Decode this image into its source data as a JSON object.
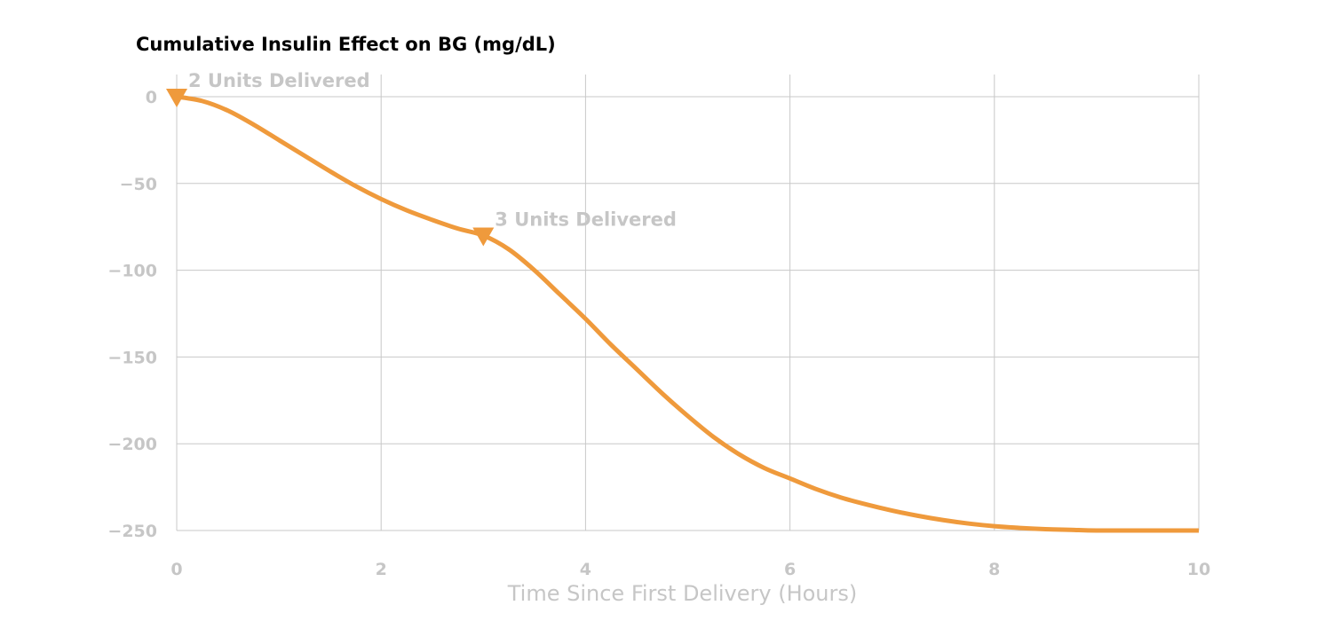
{
  "colors": {
    "line": "#EF9A3C",
    "grid": "#C8C8C8",
    "label": "#C6C6C6",
    "title": "#000000"
  },
  "chart_data": {
    "type": "line",
    "title": "Cumulative Insulin Effect on BG (mg/dL)",
    "xlabel": "Time Since First Delivery (Hours)",
    "ylabel": "",
    "xlim": [
      0,
      10
    ],
    "ylim": [
      -250,
      0
    ],
    "xticks": [
      0,
      2,
      4,
      6,
      8,
      10
    ],
    "yticks": [
      0,
      -50,
      -100,
      -150,
      -200,
      -250
    ],
    "grid": true,
    "series": [
      {
        "x": [
          0,
          0.25,
          0.5,
          0.75,
          1,
          1.25,
          1.5,
          1.75,
          2,
          2.25,
          2.5,
          2.75,
          3,
          3.25,
          3.5,
          3.75,
          4,
          4.25,
          4.5,
          4.75,
          5,
          5.25,
          5.5,
          5.75,
          6,
          6.25,
          6.5,
          6.75,
          7,
          7.25,
          7.5,
          7.75,
          8,
          8.25,
          8.5,
          8.75,
          9,
          9.5,
          10
        ],
        "y": [
          0,
          -2.5,
          -8,
          -16,
          -25,
          -34,
          -43,
          -51.5,
          -59,
          -65.5,
          -71,
          -76,
          -80,
          -88,
          -100,
          -114,
          -128,
          -143,
          -157,
          -171,
          -184,
          -196,
          -206,
          -214,
          -220,
          -226,
          -231,
          -235,
          -238.5,
          -241.5,
          -244,
          -246,
          -247.5,
          -248.5,
          -249.2,
          -249.6,
          -250,
          -250,
          -250
        ]
      }
    ],
    "annotations": [
      {
        "text": "2 Units Delivered",
        "x": 0,
        "y": 0,
        "marker": "triangle-down"
      },
      {
        "text": "3 Units Delivered",
        "x": 3,
        "y": -80,
        "marker": "triangle-down"
      }
    ]
  }
}
